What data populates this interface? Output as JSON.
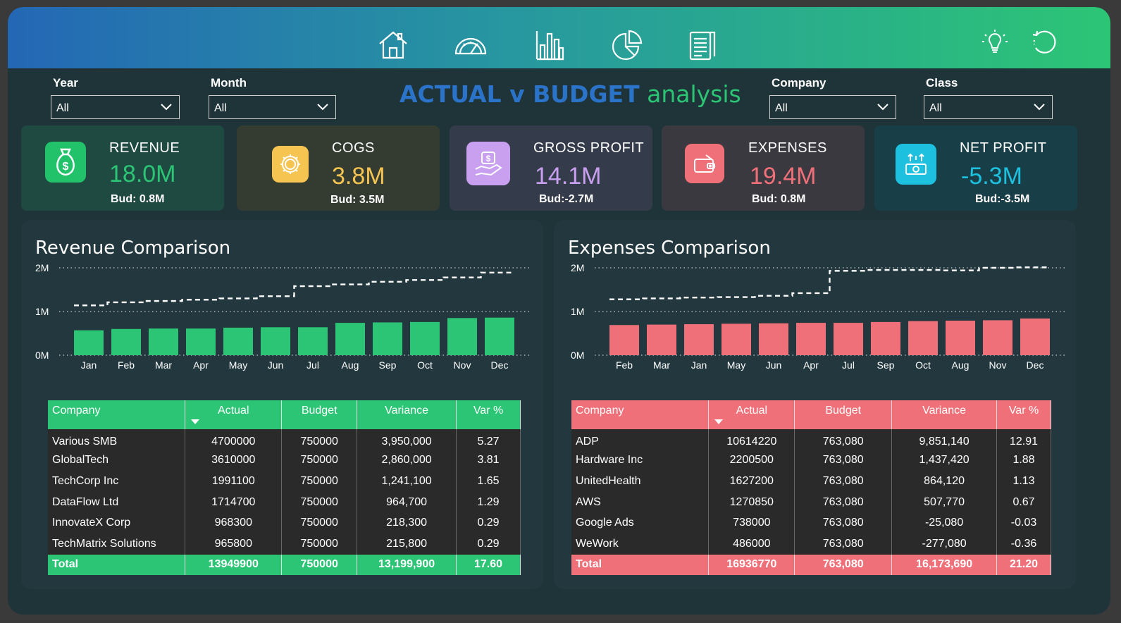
{
  "header": {
    "title_part1": "ACTUAL v BUDGET",
    "title_part2": "analysis"
  },
  "nav": {
    "icons": [
      "home-icon",
      "gauge-icon",
      "bar-chart-icon",
      "pie-chart-icon",
      "report-icon",
      "lightbulb-icon",
      "refresh-icon"
    ]
  },
  "filters": {
    "year": {
      "label": "Year",
      "value": "All"
    },
    "month": {
      "label": "Month",
      "value": "All"
    },
    "company": {
      "label": "Company",
      "value": "All"
    },
    "class": {
      "label": "Class",
      "value": "All"
    }
  },
  "kpis": {
    "revenue": {
      "label": "REVENUE",
      "value": "18.0M",
      "budget": "Bud: 0.8M",
      "color": "#2cc575",
      "icon": "money-bag-icon"
    },
    "cogs": {
      "label": "COGS",
      "value": "3.8M",
      "budget": "Bud: 3.5M",
      "color": "#f5c451",
      "icon": "gear-icon"
    },
    "gross_profit": {
      "label": "GROSS PROFIT",
      "value": "14.1M",
      "budget": "Bud:-2.7M",
      "color": "#c9a0f0",
      "icon": "hand-money-icon"
    },
    "expenses": {
      "label": "EXPENSES",
      "value": "19.4M",
      "budget": "Bud: 0.8M",
      "color": "#f0707a",
      "icon": "wallet-icon"
    },
    "net_profit": {
      "label": "NET PROFIT",
      "value": "-5.3M",
      "budget": "Bud:-3.5M",
      "color": "#1ec0e0",
      "icon": "net-profit-icon"
    }
  },
  "revenue_panel": {
    "title": "Revenue Comparison",
    "table": {
      "headers": [
        "Company",
        "Actual",
        "Budget",
        "Variance",
        "Var %"
      ],
      "rows": [
        [
          "Various SMB",
          "4700000",
          "750000",
          "3,950,000",
          "5.27"
        ],
        [
          "GlobalTech",
          "3610000",
          "750000",
          "2,860,000",
          "3.81"
        ],
        [
          "TechCorp Inc",
          "1991100",
          "750000",
          "1,241,100",
          "1.65"
        ],
        [
          "DataFlow Ltd",
          "1714700",
          "750000",
          "964,700",
          "1.29"
        ],
        [
          "InnovateX Corp",
          "968300",
          "750000",
          "218,300",
          "0.29"
        ],
        [
          "TechMatrix Solutions",
          "965800",
          "750000",
          "215,800",
          "0.29"
        ]
      ],
      "total": [
        "Total",
        "13949900",
        "750000",
        "13,199,900",
        "17.60"
      ]
    }
  },
  "expenses_panel": {
    "title": "Expenses Comparison",
    "table": {
      "headers": [
        "Company",
        "Actual",
        "Budget",
        "Variance",
        "Var %"
      ],
      "rows": [
        [
          "ADP",
          "10614220",
          "763,080",
          "9,851,140",
          "12.91"
        ],
        [
          "Hardware Inc",
          "2200500",
          "763,080",
          "1,437,420",
          "1.88"
        ],
        [
          "UnitedHealth",
          "1627200",
          "763,080",
          "864,120",
          "1.13"
        ],
        [
          "AWS",
          "1270850",
          "763,080",
          "507,770",
          "0.67"
        ],
        [
          "Google Ads",
          "738000",
          "763,080",
          "-25,080",
          "-0.03"
        ],
        [
          "WeWork",
          "486000",
          "763,080",
          "-277,080",
          "-0.36"
        ]
      ],
      "total": [
        "Total",
        "16936770",
        "763,080",
        "16,173,690",
        "21.20"
      ]
    }
  },
  "chart_data": [
    {
      "type": "bar",
      "title": "Revenue Comparison",
      "categories": [
        "Jan",
        "Feb",
        "Mar",
        "Apr",
        "May",
        "Jun",
        "Jul",
        "Aug",
        "Sep",
        "Oct",
        "Nov",
        "Dec"
      ],
      "series": [
        {
          "values": [
            0.57,
            0.6,
            0.61,
            0.61,
            0.63,
            0.64,
            0.64,
            0.74,
            0.75,
            0.76,
            0.85,
            0.86
          ],
          "color": "#2cc575"
        },
        {
          "values": [
            1.14,
            1.21,
            1.24,
            1.27,
            1.3,
            1.35,
            1.58,
            1.62,
            1.68,
            1.72,
            1.78,
            1.89
          ],
          "color": "#ffffff",
          "style": "dashed-step"
        }
      ],
      "yticks": [
        "0M",
        "1M",
        "2M"
      ],
      "ylim": [
        0,
        2
      ]
    },
    {
      "type": "bar",
      "title": "Expenses Comparison",
      "categories": [
        "Feb",
        "Mar",
        "Jan",
        "May",
        "Jun",
        "Apr",
        "Jul",
        "Sep",
        "Oct",
        "Aug",
        "Nov",
        "Dec"
      ],
      "series": [
        {
          "values": [
            0.69,
            0.7,
            0.71,
            0.72,
            0.73,
            0.74,
            0.74,
            0.76,
            0.78,
            0.79,
            0.8,
            0.84
          ],
          "color": "#f0707a"
        },
        {
          "values": [
            1.28,
            1.3,
            1.32,
            1.33,
            1.36,
            1.42,
            1.93,
            1.95,
            1.95,
            1.94,
            2.0,
            2.01
          ],
          "color": "#ffffff",
          "style": "dashed-step"
        }
      ],
      "yticks": [
        "0M",
        "1M",
        "2M"
      ],
      "ylim": [
        0,
        2
      ]
    }
  ]
}
